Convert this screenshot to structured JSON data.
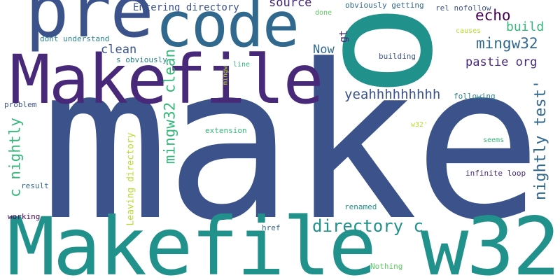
{
  "cloud": {
    "colors": {
      "navy": "#3b528b",
      "teal": "#21918c",
      "indigo": "#482878",
      "steel": "#31688e",
      "purple": "#440154",
      "green": "#35b779",
      "mint": "#5ec962",
      "lime": "#b5de2b",
      "sea": "#26828e"
    },
    "words": [
      {
        "text": "make",
        "color": "#3b528b"
      },
      {
        "text": "Makefile w32",
        "color": "#21918c"
      },
      {
        "text": "Makefile",
        "color": "#482878"
      },
      {
        "text": "code",
        "color": "#31688e"
      },
      {
        "text": "pre",
        "color": "#3b528b"
      },
      {
        "text": "o",
        "color": "#21918c"
      },
      {
        "text": "directory c",
        "color": "#21918c"
      },
      {
        "text": "mingw32 clean",
        "color": "#35b779"
      },
      {
        "text": "c nightly",
        "color": "#35b779"
      },
      {
        "text": "nightly test'",
        "color": "#31688e"
      },
      {
        "text": "yeahhhhhhhhh",
        "color": "#3b528b"
      },
      {
        "text": "mingw32",
        "color": "#31688e"
      },
      {
        "text": "echo",
        "color": "#440154"
      },
      {
        "text": "pastie org",
        "color": "#482878"
      },
      {
        "text": "clean",
        "color": "#3b528b"
      },
      {
        "text": "build",
        "color": "#35b779"
      },
      {
        "text": "source",
        "color": "#482878"
      },
      {
        "text": "Now",
        "color": "#31688e"
      },
      {
        "text": "gt",
        "color": "#482878"
      },
      {
        "text": "Entering directory",
        "color": "#3b528b"
      },
      {
        "text": "Leaving directory",
        "color": "#b5de2b"
      },
      {
        "text": "obviously getting",
        "color": "#31688e"
      },
      {
        "text": "rel nofollow",
        "color": "#3b528b"
      },
      {
        "text": "done",
        "color": "#5ec962"
      },
      {
        "text": "dont understand",
        "color": "#26828e"
      },
      {
        "text": "causes",
        "color": "#b5de2b"
      },
      {
        "text": "s obviously",
        "color": "#26828e"
      },
      {
        "text": "building",
        "color": "#3b528b"
      },
      {
        "text": "line",
        "color": "#35b779"
      },
      {
        "text": "mingw",
        "color": "#b5de2b"
      },
      {
        "text": "problem",
        "color": "#3b528b"
      },
      {
        "text": "following",
        "color": "#26828e"
      },
      {
        "text": "w32'",
        "color": "#b5de2b"
      },
      {
        "text": "extension",
        "color": "#35b779"
      },
      {
        "text": "seems",
        "color": "#35b779"
      },
      {
        "text": "infinite loop",
        "color": "#482878"
      },
      {
        "text": "result",
        "color": "#31688e"
      },
      {
        "text": "renamed",
        "color": "#21918c"
      },
      {
        "text": "working",
        "color": "#440154"
      },
      {
        "text": "href",
        "color": "#31688e"
      },
      {
        "text": "Nothing",
        "color": "#5ec962"
      }
    ]
  }
}
